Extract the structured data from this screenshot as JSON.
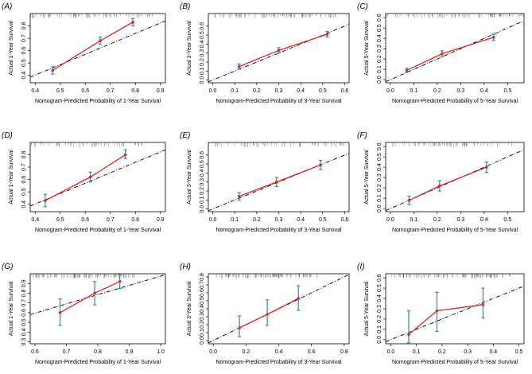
{
  "colors": {
    "calibration_line": "#e0271f",
    "error_bar": "#3a8fd0",
    "ideal_line": "#000000",
    "frame": "#000000"
  },
  "chart_data": [
    {
      "type": "line",
      "panel": "(A)",
      "xlabel": "Nomogram-Predicted Probability of 1-Year Survival",
      "ylabel": "Actual 1-Year Survival",
      "xlim": [
        0.38,
        0.92
      ],
      "ylim": [
        0.34,
        0.9
      ],
      "xticks": [
        "0.4",
        "0.5",
        "0.6",
        "0.7",
        "0.8",
        "0.9"
      ],
      "yticks": [
        "0.4",
        "0.5",
        "0.6",
        "0.7",
        "0.8"
      ],
      "points": [
        {
          "x": 0.47,
          "y": 0.44,
          "lo": 0.41,
          "hi": 0.47
        },
        {
          "x": 0.66,
          "y": 0.68,
          "lo": 0.65,
          "hi": 0.71
        },
        {
          "x": 0.79,
          "y": 0.83,
          "lo": 0.8,
          "hi": 0.86
        }
      ],
      "ideal": [
        [
          0.38,
          0.385
        ],
        [
          0.92,
          0.84
        ]
      ],
      "rug_density": 1.0
    },
    {
      "type": "line",
      "panel": "(B)",
      "xlabel": "Nomogram-Predicted Probability of 3-Year Survival",
      "ylabel": "Actual 3-Year Survival",
      "xlim": [
        -0.02,
        0.62
      ],
      "ylim": [
        -0.03,
        0.74
      ],
      "xticks": [
        "0.0",
        "0.1",
        "0.2",
        "0.3",
        "0.4",
        "0.5",
        "0.6"
      ],
      "yticks": [
        "0.0",
        "0.1",
        "0.2",
        "0.3",
        "0.4",
        "0.5",
        "0.6"
      ],
      "points": [
        {
          "x": 0.12,
          "y": 0.15,
          "lo": 0.12,
          "hi": 0.18
        },
        {
          "x": 0.3,
          "y": 0.33,
          "lo": 0.3,
          "hi": 0.36
        },
        {
          "x": 0.52,
          "y": 0.51,
          "lo": 0.48,
          "hi": 0.54
        }
      ],
      "ideal": [
        [
          -0.02,
          -0.02
        ],
        [
          0.62,
          0.62
        ]
      ],
      "rug_density": 1.0
    },
    {
      "type": "line",
      "panel": "(C)",
      "xlabel": "Nomogram-Predicted Probability of 5-Year Survival",
      "ylabel": "Actual 5-Year Survival",
      "xlim": [
        -0.02,
        0.57
      ],
      "ylim": [
        -0.03,
        0.64
      ],
      "xticks": [
        "0.0",
        "0.1",
        "0.2",
        "0.3",
        "0.4",
        "0.5"
      ],
      "yticks": [
        "0.0",
        "0.1",
        "0.2",
        "0.3",
        "0.4",
        "0.5",
        "0.6"
      ],
      "points": [
        {
          "x": 0.07,
          "y": 0.09,
          "lo": 0.07,
          "hi": 0.11
        },
        {
          "x": 0.22,
          "y": 0.25,
          "lo": 0.22,
          "hi": 0.28
        },
        {
          "x": 0.44,
          "y": 0.41,
          "lo": 0.38,
          "hi": 0.44
        }
      ],
      "ideal": [
        [
          -0.02,
          -0.02
        ],
        [
          0.57,
          0.57
        ]
      ],
      "rug_density": 1.0
    },
    {
      "type": "line",
      "panel": "(D)",
      "xlabel": "Nomogram-Predicted Probability of 1-Year Survival",
      "ylabel": "Actual 1-Year Survival",
      "xlim": [
        0.38,
        0.92
      ],
      "ylim": [
        0.34,
        0.9
      ],
      "xticks": [
        "0.4",
        "0.5",
        "0.6",
        "0.7",
        "0.8",
        "0.9"
      ],
      "yticks": [
        "0.4",
        "0.5",
        "0.6",
        "0.7",
        "0.8"
      ],
      "points": [
        {
          "x": 0.44,
          "y": 0.43,
          "lo": 0.38,
          "hi": 0.48
        },
        {
          "x": 0.62,
          "y": 0.62,
          "lo": 0.58,
          "hi": 0.66
        },
        {
          "x": 0.76,
          "y": 0.8,
          "lo": 0.77,
          "hi": 0.84
        }
      ],
      "ideal": [
        [
          0.38,
          0.385
        ],
        [
          0.92,
          0.84
        ]
      ],
      "rug_density": 0.8
    },
    {
      "type": "line",
      "panel": "(E)",
      "xlabel": "Nomogram-Predicted Probability of 3-Year Survival",
      "ylabel": "Actual 3-Year Survival",
      "xlim": [
        -0.02,
        0.62
      ],
      "ylim": [
        -0.03,
        0.74
      ],
      "xticks": [
        "0.0",
        "0.1",
        "0.2",
        "0.3",
        "0.4",
        "0.5",
        "0.6"
      ],
      "yticks": [
        "0.0",
        "0.1",
        "0.2",
        "0.3",
        "0.4",
        "0.5",
        "0.6"
      ],
      "points": [
        {
          "x": 0.12,
          "y": 0.14,
          "lo": 0.1,
          "hi": 0.18
        },
        {
          "x": 0.29,
          "y": 0.3,
          "lo": 0.25,
          "hi": 0.35
        },
        {
          "x": 0.49,
          "y": 0.49,
          "lo": 0.44,
          "hi": 0.54
        }
      ],
      "ideal": [
        [
          -0.02,
          -0.02
        ],
        [
          0.62,
          0.62
        ]
      ],
      "rug_density": 0.8
    },
    {
      "type": "line",
      "panel": "(F)",
      "xlabel": "Nomogram-Predicted Probability of 5-Year Survival",
      "ylabel": "Actual 5-Year Survival",
      "xlim": [
        -0.02,
        0.57
      ],
      "ylim": [
        -0.03,
        0.64
      ],
      "xticks": [
        "0.0",
        "0.1",
        "0.2",
        "0.3",
        "0.4",
        "0.5"
      ],
      "yticks": [
        "0.0",
        "0.1",
        "0.2",
        "0.3",
        "0.4",
        "0.5",
        "0.6"
      ],
      "points": [
        {
          "x": 0.08,
          "y": 0.08,
          "lo": 0.04,
          "hi": 0.12
        },
        {
          "x": 0.21,
          "y": 0.22,
          "lo": 0.17,
          "hi": 0.27
        },
        {
          "x": 0.41,
          "y": 0.4,
          "lo": 0.35,
          "hi": 0.45
        }
      ],
      "ideal": [
        [
          -0.02,
          -0.02
        ],
        [
          0.57,
          0.57
        ]
      ],
      "rug_density": 0.8
    },
    {
      "type": "line",
      "panel": "(G)",
      "xlabel": "Nomogram-Predicted Probability of 1-Year Survival",
      "ylabel": "Actual 1-Year Survival",
      "xlim": [
        0.585,
        1.015
      ],
      "ylim": [
        0.28,
        1.0
      ],
      "xticks": [
        "0.6",
        "0.7",
        "0.8",
        "0.9",
        "1.0"
      ],
      "yticks": [
        "0.3",
        "0.4",
        "0.5",
        "0.6",
        "0.7",
        "0.8",
        "0.9"
      ],
      "points": [
        {
          "x": 0.68,
          "y": 0.6,
          "lo": 0.47,
          "hi": 0.74
        },
        {
          "x": 0.79,
          "y": 0.8,
          "lo": 0.68,
          "hi": 0.92
        },
        {
          "x": 0.87,
          "y": 0.92,
          "lo": 0.85,
          "hi": 0.99
        }
      ],
      "ideal": [
        [
          0.585,
          0.58
        ],
        [
          1.015,
          0.99
        ]
      ],
      "rug_density": 1.3
    },
    {
      "type": "line",
      "panel": "(H)",
      "xlabel": "Nomogram-Predicted Probability of 3-Year Survival",
      "ylabel": "Actual 3-Year Survival",
      "xlim": [
        -0.03,
        0.83
      ],
      "ylim": [
        -0.04,
        0.84
      ],
      "xticks": [
        "0.0",
        "0.2",
        "0.4",
        "0.6",
        "0.8"
      ],
      "yticks": [
        "0.0",
        "0.1",
        "0.2",
        "0.3",
        "0.4",
        "0.5",
        "0.6",
        "0.7",
        "0.8"
      ],
      "points": [
        {
          "x": 0.16,
          "y": 0.16,
          "lo": 0.05,
          "hi": 0.31
        },
        {
          "x": 0.33,
          "y": 0.33,
          "lo": 0.19,
          "hi": 0.51
        },
        {
          "x": 0.52,
          "y": 0.53,
          "lo": 0.38,
          "hi": 0.69
        }
      ],
      "ideal": [
        [
          -0.03,
          -0.03
        ],
        [
          0.83,
          0.83
        ]
      ],
      "rug_density": 1.3
    },
    {
      "type": "line",
      "panel": "(I)",
      "xlabel": "Nomogram-Predicted Probability of 5-Year Survival",
      "ylabel": "Actual 5-Year Survival",
      "xlim": [
        -0.02,
        0.52
      ],
      "ylim": [
        -0.04,
        0.64
      ],
      "xticks": [
        "0.0",
        "0.1",
        "0.2",
        "0.3",
        "0.4",
        "0.5"
      ],
      "yticks": [
        "0.0",
        "0.1",
        "0.2",
        "0.3",
        "0.4",
        "0.5",
        "0.6"
      ],
      "points": [
        {
          "x": 0.07,
          "y": 0.05,
          "lo": -0.03,
          "hi": 0.28
        },
        {
          "x": 0.18,
          "y": 0.28,
          "lo": 0.08,
          "hi": 0.46
        },
        {
          "x": 0.36,
          "y": 0.34,
          "lo": 0.21,
          "hi": 0.5
        }
      ],
      "ideal": [
        [
          -0.02,
          -0.02
        ],
        [
          0.52,
          0.52
        ]
      ],
      "rug_density": 1.3
    }
  ]
}
